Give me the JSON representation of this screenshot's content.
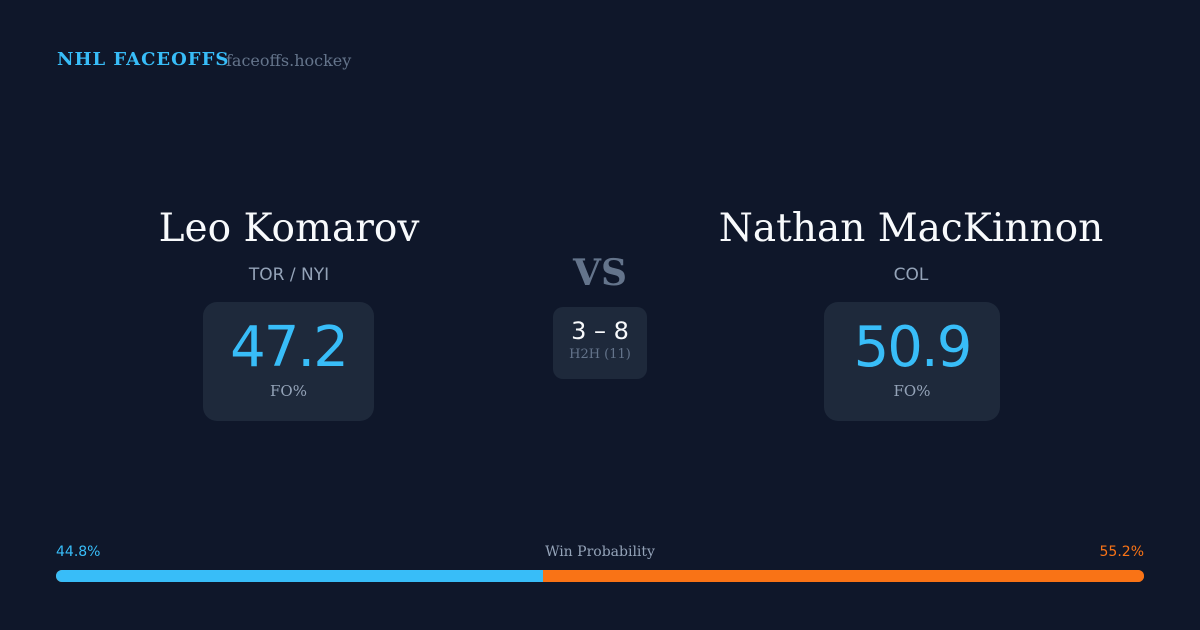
{
  "header": {
    "brand": "NHL FACEOFFS",
    "site": "faceoffs.hockey"
  },
  "player1": {
    "name": "Leo Komarov",
    "team": "TOR / NYI",
    "fo_pct": "47.2",
    "fo_label": "FO%"
  },
  "player2": {
    "name": "Nathan MacKinnon",
    "team": "COL",
    "fo_pct": "50.9",
    "fo_label": "FO%"
  },
  "versus": {
    "label": "VS",
    "h2h_score": "3 – 8",
    "h2h_label": "H2H (11)"
  },
  "win_probability": {
    "label": "Win Probability",
    "p1": "44.8%",
    "p2": "55.2%",
    "p1_value": 44.8,
    "p2_value": 55.2,
    "p1_color": "#38bdf8",
    "p2_color": "#f97316"
  }
}
